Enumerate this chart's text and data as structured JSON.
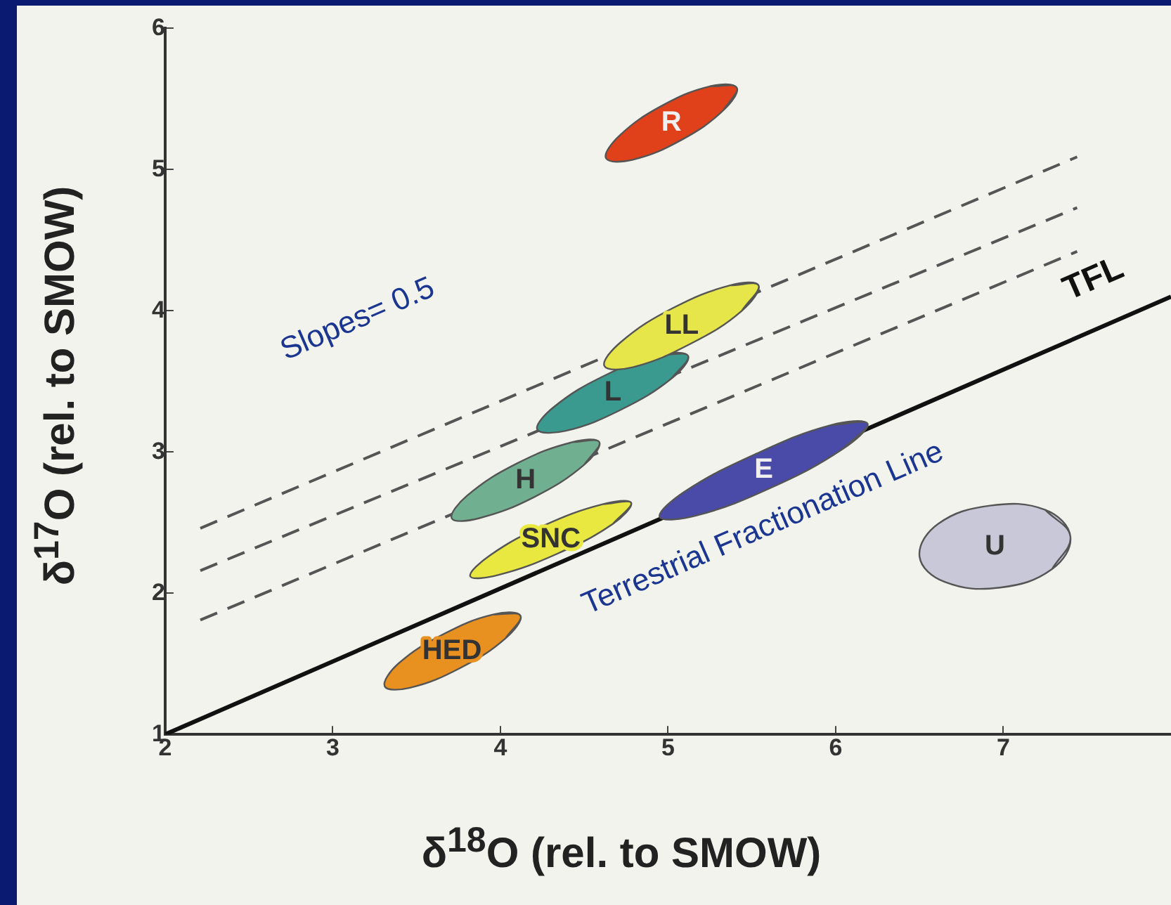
{
  "chart_data": {
    "type": "area",
    "xlabel": "δ$^{18}$O (rel. to SMOW)",
    "ylabel": "δ$^{17}$O (rel. to SMOW)",
    "xlim": [
      2,
      8
    ],
    "ylim": [
      1,
      6
    ],
    "xticks": [
      2,
      3,
      4,
      5,
      6,
      7
    ],
    "yticks": [
      1,
      2,
      3,
      4,
      5,
      6
    ],
    "grid": false,
    "legend": false,
    "series": [
      {
        "name": "R",
        "color": "#e0401a",
        "x": [
          5.41,
          5.25,
          4.96,
          4.71,
          4.63,
          4.79,
          5.08,
          5.33,
          5.41
        ],
        "values": [
          5.58,
          5.59,
          5.45,
          5.24,
          5.08,
          5.07,
          5.21,
          5.42,
          5.58
        ]
      },
      {
        "name": "LL",
        "color": "#e6e64a",
        "x": [
          5.54,
          5.37,
          5.03,
          4.72,
          4.62,
          4.79,
          5.14,
          5.44,
          5.54
        ],
        "values": [
          4.18,
          4.18,
          4.02,
          3.78,
          3.61,
          3.6,
          3.77,
          4.0,
          4.18
        ]
      },
      {
        "name": "L",
        "color": "#3a9a90",
        "x": [
          5.12,
          4.96,
          4.62,
          4.32,
          4.22,
          4.39,
          4.72,
          5.02,
          5.12
        ],
        "values": [
          3.68,
          3.69,
          3.54,
          3.32,
          3.16,
          3.15,
          3.3,
          3.52,
          3.68
        ]
      },
      {
        "name": "H",
        "color": "#70b090",
        "x": [
          4.59,
          4.43,
          4.1,
          3.8,
          3.71,
          3.87,
          4.2,
          4.5,
          4.59
        ],
        "values": [
          3.07,
          3.07,
          2.92,
          2.69,
          2.53,
          2.53,
          2.68,
          2.91,
          3.07
        ]
      },
      {
        "name": "SNC",
        "color": "#e8e840",
        "x": [
          4.78,
          4.61,
          4.26,
          3.94,
          3.82,
          3.99,
          4.34,
          4.67,
          4.78
        ],
        "values": [
          2.64,
          2.63,
          2.48,
          2.27,
          2.12,
          2.13,
          2.28,
          2.49,
          2.64
        ]
      },
      {
        "name": "E",
        "color": "#4a4aa8",
        "x": [
          6.19,
          5.97,
          5.53,
          5.1,
          4.95,
          5.17,
          5.62,
          6.04,
          6.19
        ],
        "values": [
          3.2,
          3.19,
          2.99,
          2.72,
          2.54,
          2.55,
          2.75,
          3.02,
          3.2
        ]
      },
      {
        "name": "HED",
        "color": "#e89020",
        "x": [
          4.12,
          3.96,
          3.66,
          3.39,
          3.31,
          3.46,
          3.76,
          4.03,
          4.12
        ],
        "values": [
          1.84,
          1.85,
          1.71,
          1.5,
          1.34,
          1.33,
          1.47,
          1.68,
          1.84
        ]
      },
      {
        "name": "U",
        "color": "#c8c8d8",
        "x": [
          7.4,
          7.25,
          6.92,
          6.61,
          6.5,
          6.65,
          6.98,
          7.29,
          7.4
        ],
        "values": [
          2.4,
          2.59,
          2.62,
          2.49,
          2.26,
          2.08,
          2.04,
          2.17,
          2.4
        ]
      },
      {
        "type": "line",
        "name": "TFL",
        "color": "#111111",
        "line_style": "solid",
        "x": [
          2,
          8
        ],
        "values": [
          1,
          4.1
        ]
      },
      {
        "type": "line",
        "color": "#555555",
        "line_style": "dashed",
        "x": [
          2.21,
          7.44
        ],
        "values": [
          2.46,
          5.09
        ]
      },
      {
        "type": "line",
        "color": "#555555",
        "line_style": "dashed",
        "x": [
          2.21,
          7.44
        ],
        "values": [
          2.16,
          4.73
        ]
      },
      {
        "type": "line",
        "color": "#555555",
        "line_style": "dashed",
        "x": [
          2.21,
          7.44
        ],
        "values": [
          1.81,
          4.42
        ]
      }
    ],
    "annotations": [
      "Slopes= 0.5",
      "Terrestrial Fractionation Line"
    ]
  }
}
